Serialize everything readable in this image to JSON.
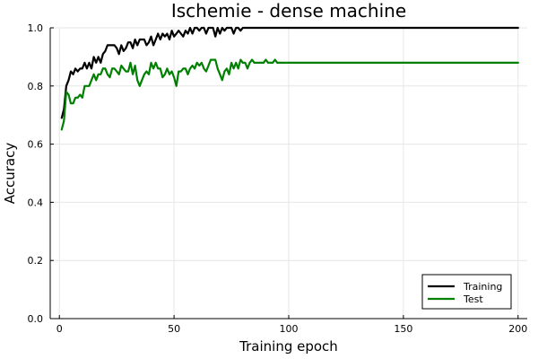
{
  "chart_data": {
    "type": "line",
    "title": "Ischemie - dense machine",
    "xlabel": "Training epoch",
    "ylabel": "Accuracy",
    "xlim": [
      -4,
      204
    ],
    "ylim": [
      0,
      1.0
    ],
    "xticks": [
      0,
      50,
      100,
      150,
      200
    ],
    "xtick_labels": [
      "0",
      "50",
      "100",
      "150",
      "200"
    ],
    "yticks": [
      0.0,
      0.2,
      0.4,
      0.6,
      0.8,
      1.0
    ],
    "ytick_labels": [
      "0.0",
      "0.2",
      "0.4",
      "0.6",
      "0.8",
      "1.0"
    ],
    "grid": true,
    "legend_position": "bottom-right",
    "series": [
      {
        "name": "Training",
        "color": "#000000",
        "x": [
          1,
          2,
          3,
          4,
          5,
          6,
          7,
          8,
          9,
          10,
          11,
          12,
          13,
          14,
          15,
          16,
          17,
          18,
          19,
          20,
          21,
          22,
          23,
          24,
          25,
          26,
          27,
          28,
          29,
          30,
          31,
          32,
          33,
          34,
          35,
          36,
          37,
          38,
          39,
          40,
          41,
          42,
          43,
          44,
          45,
          46,
          47,
          48,
          49,
          50,
          51,
          52,
          53,
          54,
          55,
          56,
          57,
          58,
          59,
          60,
          61,
          62,
          63,
          64,
          65,
          66,
          67,
          68,
          69,
          70,
          71,
          72,
          73,
          74,
          75,
          76,
          77,
          78,
          79,
          80,
          81,
          82,
          200
        ],
        "y": [
          0.69,
          0.72,
          0.8,
          0.82,
          0.85,
          0.84,
          0.86,
          0.85,
          0.86,
          0.86,
          0.88,
          0.86,
          0.88,
          0.86,
          0.9,
          0.88,
          0.9,
          0.88,
          0.91,
          0.92,
          0.94,
          0.94,
          0.94,
          0.94,
          0.93,
          0.91,
          0.94,
          0.92,
          0.93,
          0.95,
          0.95,
          0.93,
          0.96,
          0.94,
          0.96,
          0.96,
          0.96,
          0.94,
          0.95,
          0.97,
          0.94,
          0.96,
          0.98,
          0.96,
          0.98,
          0.97,
          0.98,
          0.96,
          0.99,
          0.97,
          0.98,
          0.99,
          0.98,
          0.97,
          0.99,
          0.98,
          1.0,
          0.98,
          1.0,
          1.0,
          0.99,
          1.0,
          1.0,
          0.98,
          1.0,
          1.0,
          1.0,
          0.97,
          1.0,
          0.98,
          1.0,
          0.99,
          1.0,
          1.0,
          1.0,
          0.98,
          1.0,
          1.0,
          0.99,
          1.0,
          1.0,
          1.0,
          1.0
        ]
      },
      {
        "name": "Test",
        "color": "#008000",
        "x": [
          1,
          2,
          3,
          4,
          5,
          6,
          7,
          8,
          9,
          10,
          11,
          12,
          13,
          14,
          15,
          16,
          17,
          18,
          19,
          20,
          21,
          22,
          23,
          24,
          25,
          26,
          27,
          28,
          29,
          30,
          31,
          32,
          33,
          34,
          35,
          36,
          37,
          38,
          39,
          40,
          41,
          42,
          43,
          44,
          45,
          46,
          47,
          48,
          49,
          50,
          51,
          52,
          53,
          54,
          55,
          56,
          57,
          58,
          59,
          60,
          61,
          62,
          63,
          64,
          65,
          66,
          67,
          68,
          69,
          70,
          71,
          72,
          73,
          74,
          75,
          76,
          77,
          78,
          79,
          80,
          81,
          82,
          83,
          84,
          85,
          86,
          87,
          88,
          89,
          90,
          91,
          92,
          93,
          94,
          95,
          96,
          97,
          98,
          99,
          100,
          200
        ],
        "y": [
          0.65,
          0.68,
          0.78,
          0.77,
          0.74,
          0.74,
          0.76,
          0.76,
          0.77,
          0.76,
          0.8,
          0.8,
          0.8,
          0.82,
          0.84,
          0.82,
          0.84,
          0.84,
          0.86,
          0.86,
          0.84,
          0.83,
          0.86,
          0.86,
          0.85,
          0.84,
          0.87,
          0.86,
          0.85,
          0.85,
          0.88,
          0.84,
          0.87,
          0.82,
          0.8,
          0.82,
          0.84,
          0.85,
          0.84,
          0.88,
          0.86,
          0.88,
          0.86,
          0.86,
          0.83,
          0.84,
          0.86,
          0.84,
          0.85,
          0.83,
          0.8,
          0.85,
          0.85,
          0.86,
          0.86,
          0.84,
          0.86,
          0.87,
          0.86,
          0.88,
          0.87,
          0.88,
          0.86,
          0.85,
          0.87,
          0.89,
          0.89,
          0.89,
          0.86,
          0.84,
          0.82,
          0.85,
          0.86,
          0.84,
          0.88,
          0.86,
          0.88,
          0.86,
          0.89,
          0.88,
          0.88,
          0.86,
          0.88,
          0.89,
          0.88,
          0.88,
          0.88,
          0.88,
          0.88,
          0.89,
          0.88,
          0.88,
          0.88,
          0.89,
          0.88,
          0.88,
          0.88,
          0.88,
          0.88,
          0.88,
          0.88
        ]
      }
    ]
  }
}
